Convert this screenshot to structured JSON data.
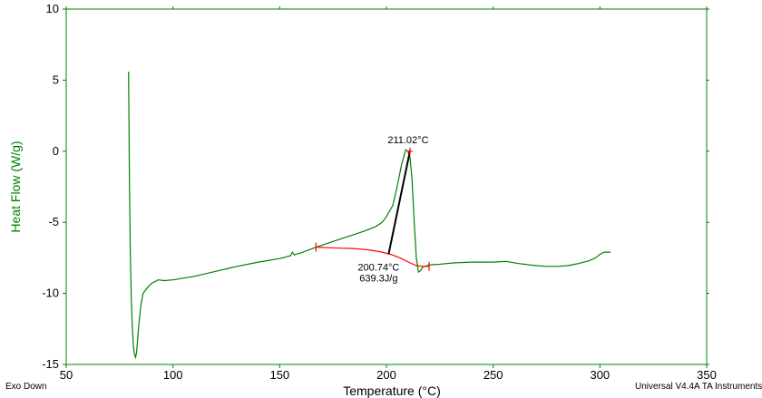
{
  "chart_data": {
    "type": "line",
    "xlabel": "Temperature (°C)",
    "ylabel": "Heat Flow (W/g)",
    "xlim": [
      50,
      350
    ],
    "ylim": [
      -15,
      10
    ],
    "x_ticks": [
      50,
      100,
      150,
      200,
      250,
      300,
      350
    ],
    "y_ticks": [
      10,
      5,
      0,
      -5,
      -10,
      -15
    ],
    "grid": false,
    "colors": {
      "curve": "#008000",
      "baseline": "#ff0000",
      "tangent": "#000000",
      "frame": "#008000"
    },
    "series": [
      {
        "x": [
          79.2,
          79.4,
          79.6,
          80.0,
          80.5,
          81.0,
          81.5,
          82.0,
          82.5,
          83.0,
          84.0,
          85.0,
          86.0,
          88.0,
          90.0,
          93.0,
          96.0,
          100.0,
          110.0,
          120.0,
          130.0,
          140.0,
          150.0,
          155.0,
          156.0,
          156.8,
          157.6,
          160.0,
          167.0,
          175.0,
          180.0,
          185.0,
          190.0,
          195.0,
          198.0,
          200.0,
          203.0,
          205.0,
          207.0,
          209.0,
          210.0,
          211.0,
          212.0,
          213.0,
          214.0,
          215.0,
          216.0,
          217.0,
          218.0,
          219.0,
          220.0,
          225.0,
          232.0,
          240.0,
          250.0,
          256.0,
          262.0,
          270.0,
          275.0,
          280.0,
          285.0,
          290.0,
          295.0,
          298.0,
          300.0,
          302.0,
          305.0
        ],
        "y": [
          5.6,
          2.0,
          -2.0,
          -7.0,
          -10.5,
          -12.5,
          -13.8,
          -14.3,
          -14.5,
          -14.1,
          -12.2,
          -10.8,
          -10.0,
          -9.6,
          -9.3,
          -9.05,
          -9.1,
          -9.05,
          -8.8,
          -8.45,
          -8.1,
          -7.8,
          -7.55,
          -7.35,
          -7.1,
          -7.3,
          -7.25,
          -7.15,
          -6.75,
          -6.35,
          -6.1,
          -5.85,
          -5.6,
          -5.3,
          -5.0,
          -4.6,
          -3.8,
          -2.5,
          -1.0,
          0.1,
          0.0,
          -0.4,
          -2.0,
          -5.0,
          -7.5,
          -8.5,
          -8.4,
          -8.15,
          -8.1,
          -8.05,
          -8.0,
          -7.95,
          -7.85,
          -7.8,
          -7.8,
          -7.75,
          -7.9,
          -8.05,
          -8.1,
          -8.1,
          -8.05,
          -7.9,
          -7.7,
          -7.5,
          -7.25,
          -7.1,
          -7.1
        ]
      }
    ],
    "baseline": {
      "x": [
        167,
        175,
        185,
        192,
        198,
        203,
        207,
        211,
        214,
        217,
        220
      ],
      "y": [
        -6.75,
        -6.8,
        -6.85,
        -6.95,
        -7.1,
        -7.3,
        -7.55,
        -7.85,
        -8.05,
        -8.1,
        -8.1
      ]
    },
    "integration_limits": [
      {
        "x": 167.0,
        "y": -6.75
      },
      {
        "x": 220.0,
        "y": -8.1
      }
    ],
    "tangent": {
      "x": [
        201.0,
        211.0
      ],
      "y": [
        -7.25,
        0.0
      ]
    },
    "peak": {
      "x": 211.02,
      "y": 0.0
    },
    "annotations": {
      "peak_label": "211.02°C",
      "onset_label": "200.74°C",
      "enthalpy_label": "639.3J/g"
    }
  },
  "footer": {
    "exo_label": "Exo Down",
    "software_label": "Universal V4.4A TA Instruments"
  }
}
